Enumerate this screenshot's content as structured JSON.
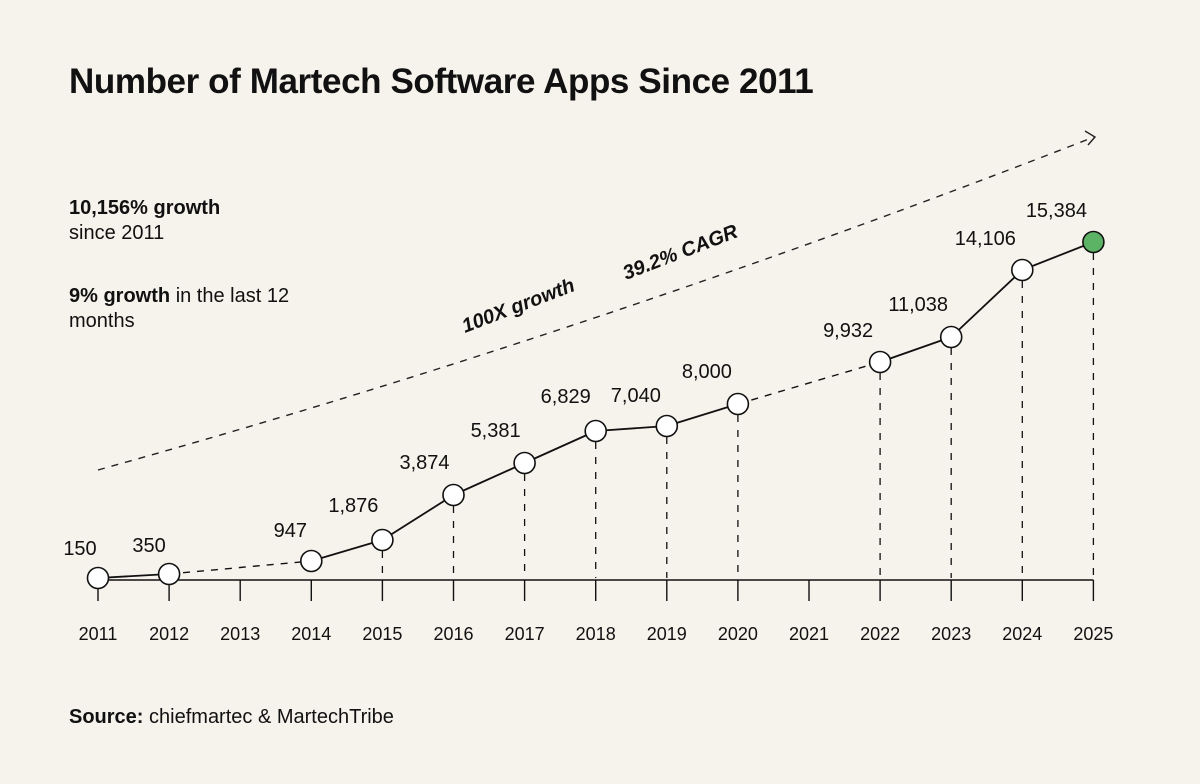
{
  "header": {
    "title": "Number of Martech Software Apps Since 2011"
  },
  "stats": {
    "growth_bold": "10,156% growth",
    "growth_rest": "since 2011",
    "recent_bold": "9% growth",
    "recent_rest": "in the last 12 months"
  },
  "footer": {
    "source_label": "Source:",
    "source_text": "chiefmartec & MartechTribe"
  },
  "colors": {
    "background": "#f6f2ec",
    "line": "#111111",
    "marker_fill": "#ffffff",
    "highlight_fill": "#5cb366"
  },
  "chart_data": {
    "type": "line",
    "title": "Number of Martech Software Apps Since 2011",
    "xlabel": "",
    "ylabel": "",
    "ylim": [
      0,
      15384
    ],
    "grid": false,
    "x_ticks": [
      "2011",
      "2012",
      "2013",
      "2014",
      "2015",
      "2016",
      "2017",
      "2018",
      "2019",
      "2020",
      "2021",
      "2022",
      "2023",
      "2024",
      "2025"
    ],
    "series": [
      {
        "name": "Martech apps",
        "x": [
          "2011",
          "2012",
          "2014",
          "2015",
          "2016",
          "2017",
          "2018",
          "2019",
          "2020",
          "2022",
          "2023",
          "2024",
          "2025"
        ],
        "values": [
          150,
          350,
          947,
          1876,
          3874,
          5381,
          6829,
          7040,
          8000,
          9932,
          11038,
          14106,
          15384
        ],
        "labels": [
          "150",
          "350",
          "947",
          "1,876",
          "3,874",
          "5,381",
          "6,829",
          "7,040",
          "8,000",
          "9,932",
          "11,038",
          "14,106",
          "15,384"
        ],
        "highlight": "2025"
      }
    ],
    "annotations": [
      "100X growth",
      "39.2% CAGR"
    ]
  }
}
